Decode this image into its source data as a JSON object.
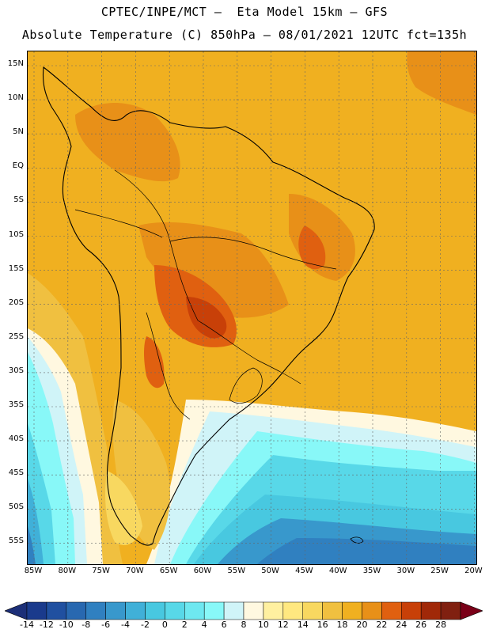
{
  "header": {
    "line1": "CPTEC/INPE/MCT –  Eta Model 15km – GFS",
    "line2": "Absolute Temperature (C) 850hPa – 08/01/2021 12UTC fct=135h"
  },
  "map": {
    "lat_labels": [
      "15N",
      "10N",
      "5N",
      "EQ",
      "5S",
      "10S",
      "15S",
      "20S",
      "25S",
      "30S",
      "35S",
      "40S",
      "45S",
      "50S",
      "55S"
    ],
    "lon_labels": [
      "85W",
      "80W",
      "75W",
      "70W",
      "65W",
      "60W",
      "55W",
      "50W",
      "45W",
      "40W",
      "35W",
      "30W",
      "25W",
      "20W"
    ]
  },
  "colorbar": {
    "labels": [
      "-14",
      "-12",
      "-10",
      "-8",
      "-6",
      "-4",
      "-2",
      "0",
      "2",
      "4",
      "6",
      "8",
      "10",
      "12",
      "14",
      "16",
      "18",
      "20",
      "22",
      "24",
      "26",
      "28"
    ],
    "colors": [
      "#1a3a8c",
      "#2050a0",
      "#2868b0",
      "#3080c0",
      "#3898cc",
      "#40b0d8",
      "#48c8e0",
      "#58d8e8",
      "#6ee8f0",
      "#88f8f8",
      "#d0f4f8",
      "#fff8e0",
      "#fff0a0",
      "#ffe880",
      "#f8d860",
      "#f0c040",
      "#f0b020",
      "#e89018",
      "#e06010",
      "#c84008",
      "#a02808",
      "#802010"
    ],
    "end_low": "#1c2f78",
    "end_high": "#7a0018"
  }
}
